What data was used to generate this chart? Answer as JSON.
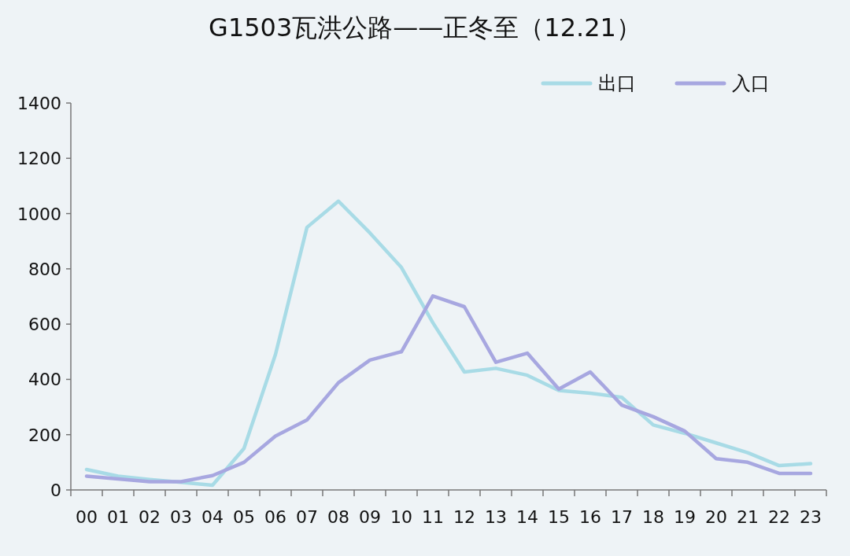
{
  "chart_data": {
    "type": "line",
    "title": "G1503瓦洪公路——正冬至（12.21）",
    "categories": [
      "00",
      "01",
      "02",
      "03",
      "04",
      "05",
      "06",
      "07",
      "08",
      "09",
      "10",
      "11",
      "12",
      "13",
      "14",
      "15",
      "16",
      "17",
      "18",
      "19",
      "20",
      "21",
      "22",
      "23"
    ],
    "series": [
      {
        "name": "出口",
        "color": "#a8dbe6",
        "values": [
          74,
          50,
          38,
          28,
          17,
          150,
          490,
          950,
          1045,
          930,
          805,
          605,
          427,
          440,
          415,
          360,
          350,
          335,
          235,
          205,
          170,
          135,
          88,
          95
        ]
      },
      {
        "name": "入口",
        "color": "#a7a7e0",
        "values": [
          50,
          40,
          30,
          30,
          52,
          100,
          195,
          253,
          388,
          470,
          500,
          702,
          663,
          462,
          495,
          365,
          427,
          307,
          265,
          213,
          113,
          100,
          60,
          60
        ]
      }
    ],
    "ylim": [
      0,
      1400
    ],
    "yticks": [
      0,
      200,
      400,
      600,
      800,
      1000,
      1200,
      1400
    ],
    "grid": false,
    "legend": "top right",
    "marker": "none",
    "line_style": "solid"
  }
}
